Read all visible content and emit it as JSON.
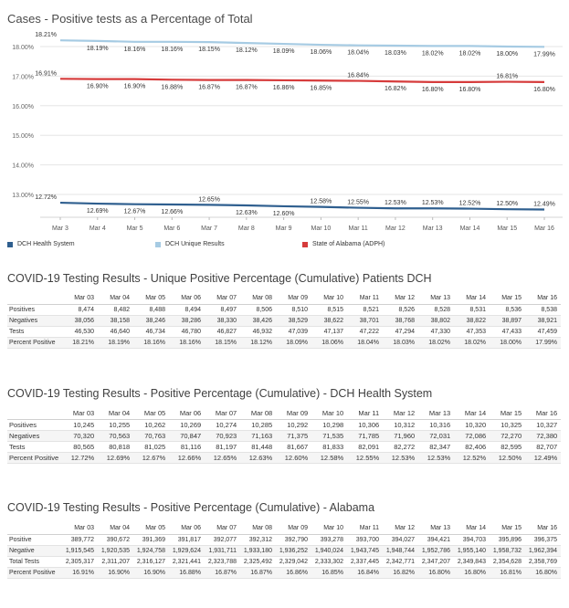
{
  "page": {
    "chart_title": "Cases - Positive tests as a Percentage of Total",
    "table1_title": "COVID-19 Testing Results - Unique Positive Percentage (Cumulative) Patients DCH",
    "table2_title": "COVID-19 Testing Results - Positive Percentage (Cumulative) - DCH Health System",
    "table3_title": "COVID-19 Testing Results - Positive Percentage (Cumulative) - Alabama"
  },
  "chart_data": {
    "type": "line",
    "title": "Cases - Positive tests as a Percentage of Total",
    "xlabel": "",
    "ylabel": "",
    "x": [
      "Mar 3",
      "Mar 4",
      "Mar 5",
      "Mar 6",
      "Mar 7",
      "Mar 8",
      "Mar 9",
      "Mar 10",
      "Mar 11",
      "Mar 12",
      "Mar 13",
      "Mar 14",
      "Mar 15",
      "Mar 16"
    ],
    "yticks": [
      "18.00%",
      "17.00%",
      "16.00%",
      "15.00%",
      "14.00%",
      "13.00%"
    ],
    "ylim": [
      12.4,
      18.3
    ],
    "grid": true,
    "legend_position": "bottom",
    "series": [
      {
        "name": "DCH Health System",
        "color": "#2f5f8f",
        "values": [
          12.72,
          12.69,
          12.67,
          12.66,
          12.65,
          12.63,
          12.6,
          12.58,
          12.55,
          12.53,
          12.53,
          12.52,
          12.5,
          12.49
        ],
        "labels": [
          "12.72%",
          "12.69%",
          "12.67%",
          "12.66%",
          "12.65%",
          "12.63%",
          "12.60%",
          "12.58%",
          "12.55%",
          "12.53%",
          "12.53%",
          "12.52%",
          "12.50%",
          "12.49%"
        ]
      },
      {
        "name": "DCH Unique Results",
        "color": "#a6cbe3",
        "values": [
          18.21,
          18.19,
          18.16,
          18.16,
          18.15,
          18.12,
          18.09,
          18.06,
          18.04,
          18.03,
          18.02,
          18.02,
          18.0,
          17.99
        ],
        "labels": [
          "18.21%",
          "18.19%",
          "18.16%",
          "18.16%",
          "18.15%",
          "18.12%",
          "18.09%",
          "18.06%",
          "18.04%",
          "18.03%",
          "18.02%",
          "18.02%",
          "18.00%",
          "17.99%"
        ]
      },
      {
        "name": "State of Alabama (ADPH)",
        "color": "#d63b3b",
        "values": [
          16.91,
          16.9,
          16.9,
          16.88,
          16.87,
          16.87,
          16.86,
          16.85,
          16.84,
          16.82,
          16.8,
          16.8,
          16.81,
          16.8
        ],
        "labels": [
          "16.91%",
          "16.90%",
          "16.90%",
          "16.88%",
          "16.87%",
          "16.87%",
          "16.86%",
          "16.85%",
          "16.84%",
          "16.82%",
          "16.80%",
          "16.80%",
          "16.81%",
          "16.80%"
        ]
      }
    ]
  },
  "table1": {
    "columns": [
      "Mar 03",
      "Mar 04",
      "Mar 05",
      "Mar 06",
      "Mar 07",
      "Mar 08",
      "Mar 09",
      "Mar 10",
      "Mar 11",
      "Mar 12",
      "Mar 13",
      "Mar 14",
      "Mar 15",
      "Mar 16"
    ],
    "rows": [
      {
        "label": "Positives",
        "values": [
          "8,474",
          "8,482",
          "8,488",
          "8,494",
          "8,497",
          "8,506",
          "8,510",
          "8,515",
          "8,521",
          "8,526",
          "8,528",
          "8,531",
          "8,536",
          "8,538"
        ]
      },
      {
        "label": "Negatives",
        "values": [
          "38,056",
          "38,158",
          "38,246",
          "38,286",
          "38,330",
          "38,426",
          "38,529",
          "38,622",
          "38,701",
          "38,768",
          "38,802",
          "38,822",
          "38,897",
          "38,921"
        ]
      },
      {
        "label": "Tests",
        "values": [
          "46,530",
          "46,640",
          "46,734",
          "46,780",
          "46,827",
          "46,932",
          "47,039",
          "47,137",
          "47,222",
          "47,294",
          "47,330",
          "47,353",
          "47,433",
          "47,459"
        ]
      },
      {
        "label": "Percent Positive",
        "values": [
          "18.21%",
          "18.19%",
          "18.16%",
          "18.16%",
          "18.15%",
          "18.12%",
          "18.09%",
          "18.06%",
          "18.04%",
          "18.03%",
          "18.02%",
          "18.02%",
          "18.00%",
          "17.99%"
        ]
      }
    ]
  },
  "table2": {
    "columns": [
      "Mar 03",
      "Mar 04",
      "Mar 05",
      "Mar 06",
      "Mar 07",
      "Mar 08",
      "Mar 09",
      "Mar 10",
      "Mar 11",
      "Mar 12",
      "Mar 13",
      "Mar 14",
      "Mar 15",
      "Mar 16"
    ],
    "rows": [
      {
        "label": "Positives",
        "values": [
          "10,245",
          "10,255",
          "10,262",
          "10,269",
          "10,274",
          "10,285",
          "10,292",
          "10,298",
          "10,306",
          "10,312",
          "10,316",
          "10,320",
          "10,325",
          "10,327"
        ]
      },
      {
        "label": "Negatives",
        "values": [
          "70,320",
          "70,563",
          "70,763",
          "70,847",
          "70,923",
          "71,163",
          "71,375",
          "71,535",
          "71,785",
          "71,960",
          "72,031",
          "72,086",
          "72,270",
          "72,380"
        ]
      },
      {
        "label": "Tests",
        "values": [
          "80,565",
          "80,818",
          "81,025",
          "81,116",
          "81,197",
          "81,448",
          "81,667",
          "81,833",
          "82,091",
          "82,272",
          "82,347",
          "82,406",
          "82,595",
          "82,707"
        ]
      },
      {
        "label": "Percent Positive",
        "values": [
          "12.72%",
          "12.69%",
          "12.67%",
          "12.66%",
          "12.65%",
          "12.63%",
          "12.60%",
          "12.58%",
          "12.55%",
          "12.53%",
          "12.53%",
          "12.52%",
          "12.50%",
          "12.49%"
        ]
      }
    ]
  },
  "table3": {
    "columns": [
      "Mar 03",
      "Mar 04",
      "Mar 05",
      "Mar 06",
      "Mar 07",
      "Mar 08",
      "Mar 09",
      "Mar 10",
      "Mar 11",
      "Mar 12",
      "Mar 13",
      "Mar 14",
      "Mar 15",
      "Mar 16"
    ],
    "rows": [
      {
        "label": "Positive",
        "values": [
          "389,772",
          "390,672",
          "391,369",
          "391,817",
          "392,077",
          "392,312",
          "392,790",
          "393,278",
          "393,700",
          "394,027",
          "394,421",
          "394,703",
          "395,896",
          "396,375"
        ]
      },
      {
        "label": "Negative",
        "values": [
          "1,915,545",
          "1,920,535",
          "1,924,758",
          "1,929,624",
          "1,931,711",
          "1,933,180",
          "1,936,252",
          "1,940,024",
          "1,943,745",
          "1,948,744",
          "1,952,786",
          "1,955,140",
          "1,958,732",
          "1,962,394"
        ]
      },
      {
        "label": "Total Tests",
        "values": [
          "2,305,317",
          "2,311,207",
          "2,316,127",
          "2,321,441",
          "2,323,788",
          "2,325,492",
          "2,329,042",
          "2,333,302",
          "2,337,445",
          "2,342,771",
          "2,347,207",
          "2,349,843",
          "2,354,628",
          "2,358,769"
        ]
      },
      {
        "label": "Percent Positive",
        "values": [
          "16.91%",
          "16.90%",
          "16.90%",
          "16.88%",
          "16.87%",
          "16.87%",
          "16.86%",
          "16.85%",
          "16.84%",
          "16.82%",
          "16.80%",
          "16.80%",
          "16.81%",
          "16.80%"
        ]
      }
    ]
  }
}
